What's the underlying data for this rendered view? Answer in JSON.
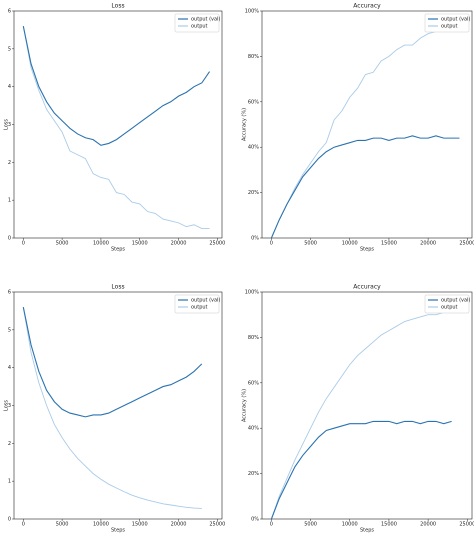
{
  "chart_data": [
    {
      "type": "line",
      "title": "Loss",
      "xlabel": "Steps",
      "ylabel": "Loss",
      "x": [
        0,
        1000,
        2000,
        3000,
        4000,
        5000,
        6000,
        7000,
        8000,
        9000,
        10000,
        11000,
        12000,
        13000,
        14000,
        15000,
        16000,
        17000,
        18000,
        19000,
        20000,
        21000,
        22000,
        23000,
        24000
      ],
      "series": [
        {
          "name": "output (val)",
          "color": "#2b73b0",
          "values": [
            5.6,
            4.6,
            4.0,
            3.6,
            3.3,
            3.1,
            2.9,
            2.75,
            2.65,
            2.6,
            2.45,
            2.5,
            2.6,
            2.75,
            2.9,
            3.05,
            3.2,
            3.35,
            3.5,
            3.6,
            3.75,
            3.85,
            4.0,
            4.1,
            4.4
          ]
        },
        {
          "name": "output",
          "color": "#a9cbe8",
          "values": [
            5.6,
            4.5,
            3.9,
            3.4,
            3.1,
            2.8,
            2.3,
            2.2,
            2.1,
            1.7,
            1.6,
            1.55,
            1.2,
            1.15,
            0.95,
            0.9,
            0.7,
            0.65,
            0.5,
            0.45,
            0.4,
            0.3,
            0.35,
            0.25,
            0.25
          ]
        }
      ],
      "xlim": [
        -1200,
        25600
      ],
      "xticks": [
        0,
        5000,
        10000,
        15000,
        20000,
        25000
      ],
      "ylim": [
        0,
        6
      ],
      "yticks": [
        0,
        1,
        2,
        3,
        4,
        5,
        6
      ],
      "legend": "upper right"
    },
    {
      "type": "line",
      "title": "Accuracy",
      "xlabel": "Steps",
      "ylabel": "Accuracy (%)",
      "x": [
        0,
        1000,
        2000,
        3000,
        4000,
        5000,
        6000,
        7000,
        8000,
        9000,
        10000,
        11000,
        12000,
        13000,
        14000,
        15000,
        16000,
        17000,
        18000,
        19000,
        20000,
        21000,
        22000,
        23000,
        24000
      ],
      "series": [
        {
          "name": "output (val)",
          "color": "#2b73b0",
          "values": [
            0,
            8,
            15,
            21,
            27,
            31,
            35,
            38,
            40,
            41,
            42,
            43,
            43,
            44,
            44,
            43,
            44,
            44,
            45,
            44,
            44,
            45,
            44,
            44,
            44
          ]
        },
        {
          "name": "output",
          "color": "#a9cbe8",
          "values": [
            0,
            8,
            15,
            22,
            28,
            33,
            38,
            42,
            52,
            56,
            62,
            66,
            72,
            73,
            78,
            80,
            83,
            85,
            85,
            88,
            90,
            91,
            91,
            92,
            92
          ]
        }
      ],
      "xlim": [
        -1200,
        25600
      ],
      "xticks": [
        0,
        5000,
        10000,
        15000,
        20000,
        25000
      ],
      "ylim": [
        0,
        100
      ],
      "yticks": [
        {
          "value": 0,
          "label": "0%"
        },
        {
          "value": 20,
          "label": "20%"
        },
        {
          "value": 40,
          "label": "40%"
        },
        {
          "value": 60,
          "label": "60%"
        },
        {
          "value": 80,
          "label": "80%"
        },
        {
          "value": 100,
          "label": "100%"
        }
      ],
      "legend": "upper right"
    },
    {
      "type": "line",
      "title": "Loss",
      "xlabel": "Steps",
      "ylabel": "Loss",
      "x": [
        0,
        1000,
        2000,
        3000,
        4000,
        5000,
        6000,
        7000,
        8000,
        9000,
        10000,
        11000,
        12000,
        13000,
        14000,
        15000,
        16000,
        17000,
        18000,
        19000,
        20000,
        21000,
        22000,
        23000
      ],
      "series": [
        {
          "name": "output (val)",
          "color": "#2b73b0",
          "values": [
            5.6,
            4.6,
            3.9,
            3.4,
            3.1,
            2.9,
            2.8,
            2.75,
            2.7,
            2.75,
            2.75,
            2.8,
            2.9,
            3.0,
            3.1,
            3.2,
            3.3,
            3.4,
            3.5,
            3.55,
            3.65,
            3.75,
            3.9,
            4.1
          ]
        },
        {
          "name": "output",
          "color": "#a9cbe8",
          "values": [
            5.6,
            4.4,
            3.6,
            3.0,
            2.5,
            2.15,
            1.85,
            1.6,
            1.4,
            1.2,
            1.05,
            0.92,
            0.82,
            0.72,
            0.63,
            0.56,
            0.5,
            0.45,
            0.4,
            0.37,
            0.34,
            0.31,
            0.29,
            0.28
          ]
        }
      ],
      "xlim": [
        -1200,
        25600
      ],
      "xticks": [
        0,
        5000,
        10000,
        15000,
        20000,
        25000
      ],
      "ylim": [
        0,
        6
      ],
      "yticks": [
        0,
        1,
        2,
        3,
        4,
        5,
        6
      ],
      "legend": "upper right"
    },
    {
      "type": "line",
      "title": "Accuracy",
      "xlabel": "Steps",
      "ylabel": "Accuracy (%)",
      "x": [
        0,
        1000,
        2000,
        3000,
        4000,
        5000,
        6000,
        7000,
        8000,
        9000,
        10000,
        11000,
        12000,
        13000,
        14000,
        15000,
        16000,
        17000,
        18000,
        19000,
        20000,
        21000,
        22000,
        23000
      ],
      "series": [
        {
          "name": "output (val)",
          "color": "#2b73b0",
          "values": [
            0,
            9,
            16,
            23,
            28,
            32,
            36,
            39,
            40,
            41,
            42,
            42,
            42,
            43,
            43,
            43,
            42,
            43,
            43,
            42,
            43,
            43,
            42,
            43
          ]
        },
        {
          "name": "output",
          "color": "#a9cbe8",
          "values": [
            0,
            10,
            18,
            26,
            33,
            40,
            47,
            53,
            58,
            63,
            68,
            72,
            75,
            78,
            81,
            83,
            85,
            87,
            88,
            89,
            90,
            90,
            91,
            91
          ]
        }
      ],
      "xlim": [
        -1200,
        25600
      ],
      "xticks": [
        0,
        5000,
        10000,
        15000,
        20000,
        25000
      ],
      "ylim": [
        0,
        100
      ],
      "yticks": [
        {
          "value": 0,
          "label": "0%"
        },
        {
          "value": 20,
          "label": "20%"
        },
        {
          "value": 40,
          "label": "40%"
        },
        {
          "value": 60,
          "label": "60%"
        },
        {
          "value": 80,
          "label": "80%"
        },
        {
          "value": 100,
          "label": "100%"
        }
      ],
      "legend": "upper right"
    }
  ]
}
